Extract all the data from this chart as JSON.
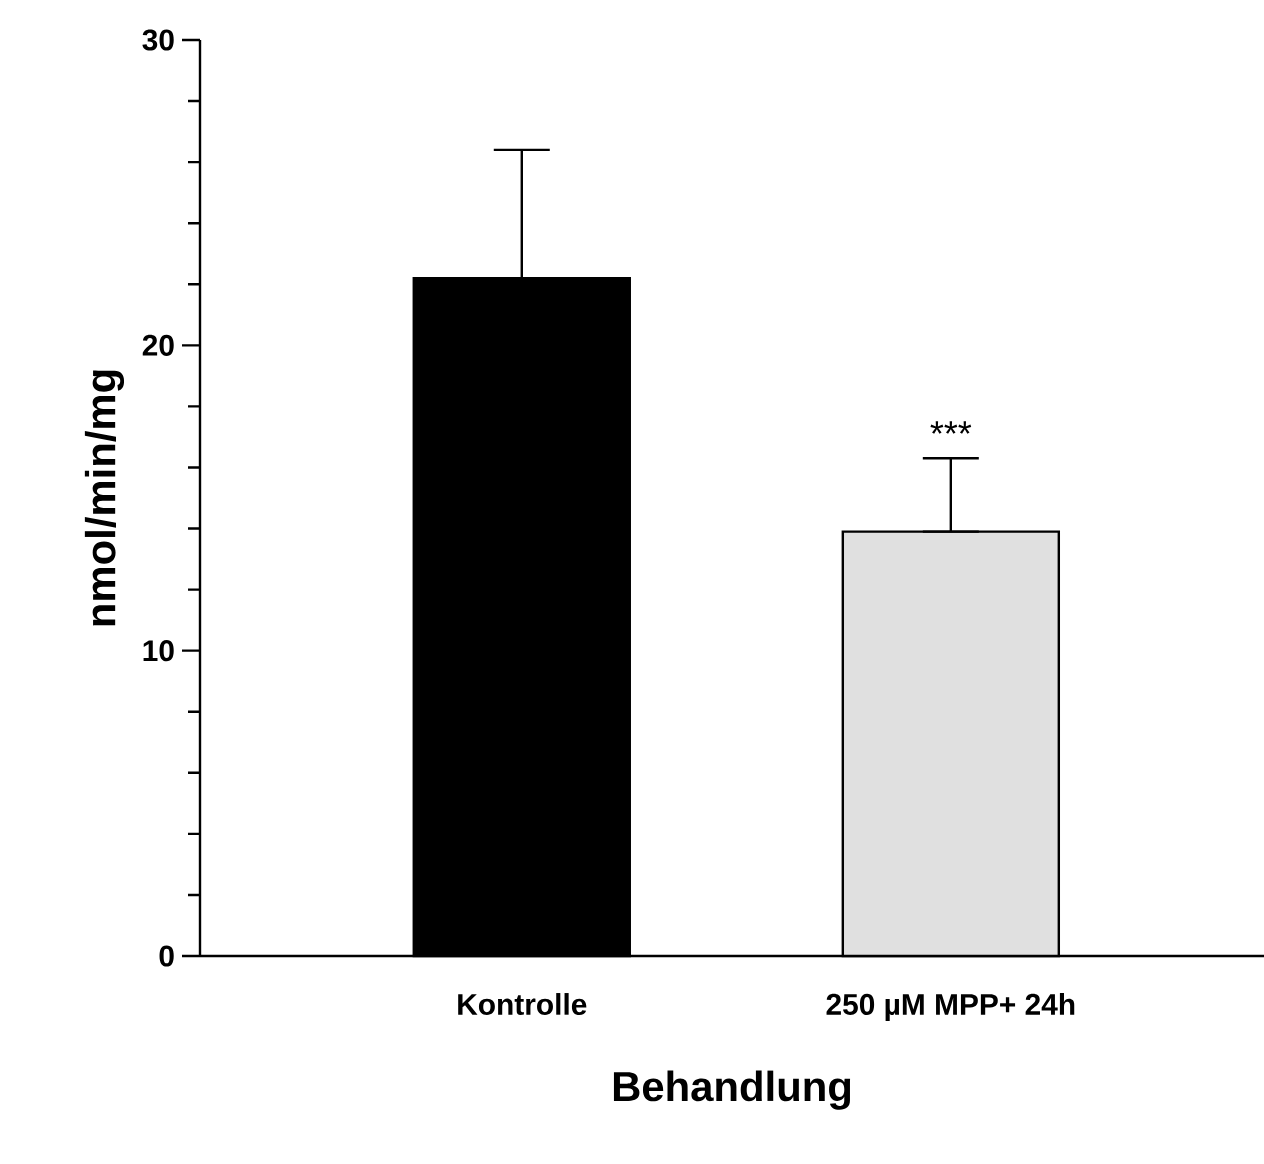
{
  "chart_data": {
    "type": "bar",
    "xlabel": "Behandlung",
    "ylabel": "nmol/min/mg",
    "categories": [
      "Kontrolle",
      "250 µM MPP+  24h"
    ],
    "values": [
      22.2,
      13.9
    ],
    "colors": [
      "#000000",
      "#e0e0e0"
    ],
    "errors": [
      [
        22.2,
        26.4
      ],
      [
        13.9,
        16.3
      ]
    ],
    "ylim": [
      0,
      30
    ],
    "yticks": [
      0,
      {
        "value": 2,
        "label": null
      },
      {
        "value": 4,
        "label": null
      },
      {
        "value": 6,
        "label": null
      },
      {
        "value": 8,
        "label": null
      },
      10,
      {
        "value": 12,
        "label": null
      },
      {
        "value": 14,
        "label": null
      },
      {
        "value": 16,
        "label": null
      },
      {
        "value": 18,
        "label": null
      },
      20,
      {
        "value": 22,
        "label": null
      },
      {
        "value": 24,
        "label": null
      },
      {
        "value": 26,
        "label": null
      },
      {
        "value": 28,
        "label": null
      },
      30
    ],
    "annotations": [
      "***"
    ]
  }
}
